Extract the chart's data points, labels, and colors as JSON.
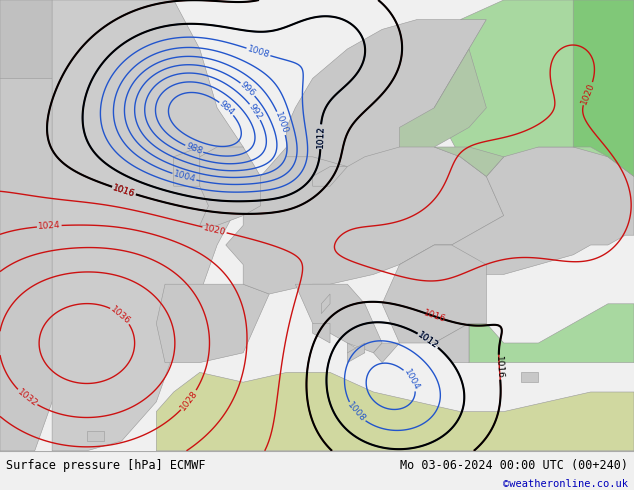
{
  "title_left": "Surface pressure [hPa] ECMWF",
  "title_right": "Mo 03-06-2024 00:00 UTC (00+240)",
  "copyright": "©weatheronline.co.uk",
  "copyright_color": "#0000bb",
  "fig_width": 6.34,
  "fig_height": 4.9,
  "dpi": 100,
  "map_bg": "#d8d8d8",
  "ocean_color": "#d0d8e8",
  "land_grey": "#c8c8c8",
  "land_green": "#a8d8a0",
  "land_green_dark": "#80c878",
  "footer_bg": "#f0f0f0",
  "footer_line_color": "#aaaaaa"
}
